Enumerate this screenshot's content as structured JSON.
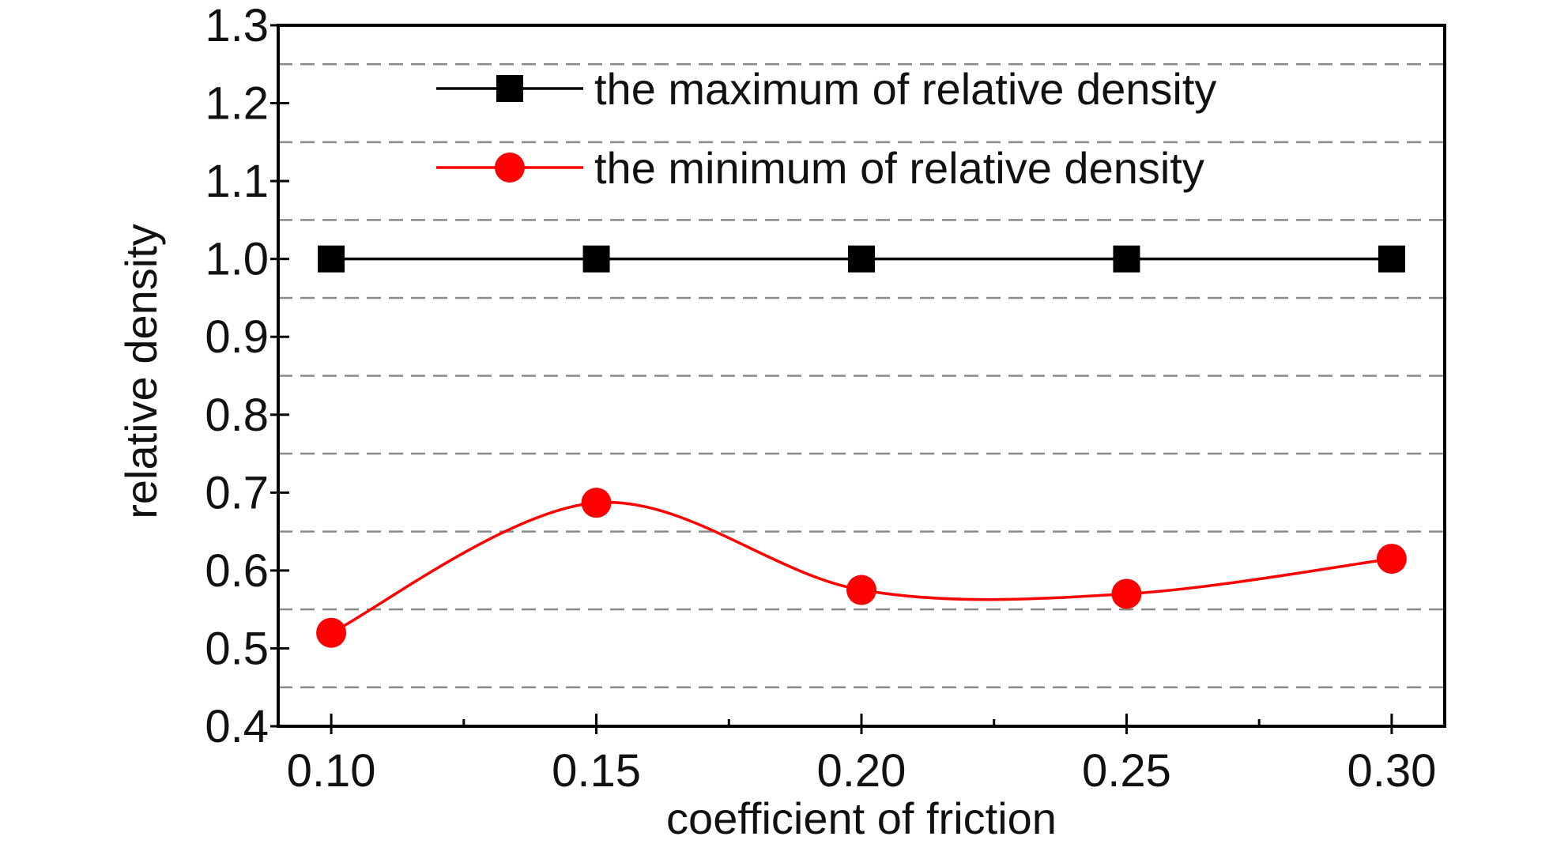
{
  "chart_data": {
    "type": "line",
    "xlabel": "coefficient of friction",
    "ylabel": "relative density",
    "x": [
      0.1,
      0.15,
      0.2,
      0.25,
      0.3
    ],
    "x_tick_labels": [
      "0.10",
      "0.15",
      "0.20",
      "0.25",
      "0.30"
    ],
    "xlim": [
      0.09,
      0.31
    ],
    "ylim": [
      0.4,
      1.3
    ],
    "y_ticks": [
      0.4,
      0.5,
      0.6,
      0.7,
      0.8,
      0.9,
      1.0,
      1.1,
      1.2,
      1.3
    ],
    "y_tick_labels": [
      "0.4",
      "0.5",
      "0.6",
      "0.7",
      "0.8",
      "0.9",
      "1.0",
      "1.1",
      "1.2",
      "1.3"
    ],
    "x_minor_ticks": [
      0.125,
      0.175,
      0.225,
      0.275
    ],
    "gridlines_y": [
      0.45,
      0.55,
      0.65,
      0.75,
      0.85,
      0.95,
      1.05,
      1.15,
      1.25
    ],
    "grid": "horizontal dashed",
    "legend_position": "top-center",
    "series": [
      {
        "name": "the maximum of relative density",
        "values": [
          1.0,
          1.0,
          1.0,
          1.0,
          1.0
        ],
        "color": "#000000",
        "marker": "square",
        "smooth": false
      },
      {
        "name": "the minimum of relative density",
        "values": [
          0.52,
          0.687,
          0.575,
          0.57,
          0.615
        ],
        "color": "#ff0000",
        "marker": "circle",
        "smooth": true
      }
    ]
  }
}
